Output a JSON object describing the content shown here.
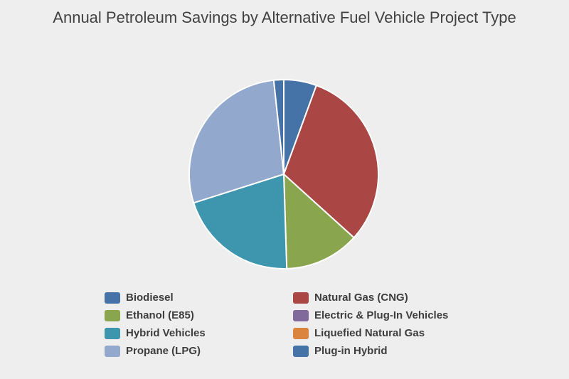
{
  "chart_data": {
    "type": "pie",
    "title": "Annual Petroleum Savings by Alternative Fuel Vehicle Project Type",
    "legend_position": "bottom",
    "direction": "clockwise",
    "start_angle_deg": 0,
    "values_are": "estimated percent of total, read from slice angles",
    "slices": [
      {
        "name": "Biodiesel",
        "value": 5.6,
        "color": "#4572A7"
      },
      {
        "name": "Natural Gas (CNG)",
        "value": 31.1,
        "color": "#AA4643"
      },
      {
        "name": "Ethanol (E85)",
        "value": 12.8,
        "color": "#89A54E"
      },
      {
        "name": "Electric & Plug-In Vehicles",
        "value": 0,
        "color": "#80699B"
      },
      {
        "name": "Hybrid Vehicles",
        "value": 20.6,
        "color": "#3D96AE"
      },
      {
        "name": "Liquefied Natural Gas",
        "value": 0,
        "color": "#DB843D"
      },
      {
        "name": "Propane (LPG)",
        "value": 28.2,
        "color": "#92A8CD"
      },
      {
        "name": "Plug-in Hybrid",
        "value": 1.7,
        "color": "#4572A7"
      }
    ]
  },
  "page": {
    "background": "#eeeeee",
    "slice_border_color": "#ffffff"
  },
  "legend": {
    "columns": [
      {
        "items": [
          {
            "label": "Biodiesel",
            "color": "#4572A7"
          },
          {
            "label": "Ethanol (E85)",
            "color": "#89A54E"
          },
          {
            "label": "Hybrid Vehicles",
            "color": "#3D96AE"
          },
          {
            "label": "Propane (LPG)",
            "color": "#92A8CD"
          }
        ]
      },
      {
        "items": [
          {
            "label": "Natural Gas (CNG)",
            "color": "#AA4643"
          },
          {
            "label": "Electric & Plug-In Vehicles",
            "color": "#80699B"
          },
          {
            "label": "Liquefied Natural Gas",
            "color": "#DB843D"
          },
          {
            "label": "Plug-in Hybrid",
            "color": "#4572A7"
          }
        ]
      }
    ]
  }
}
